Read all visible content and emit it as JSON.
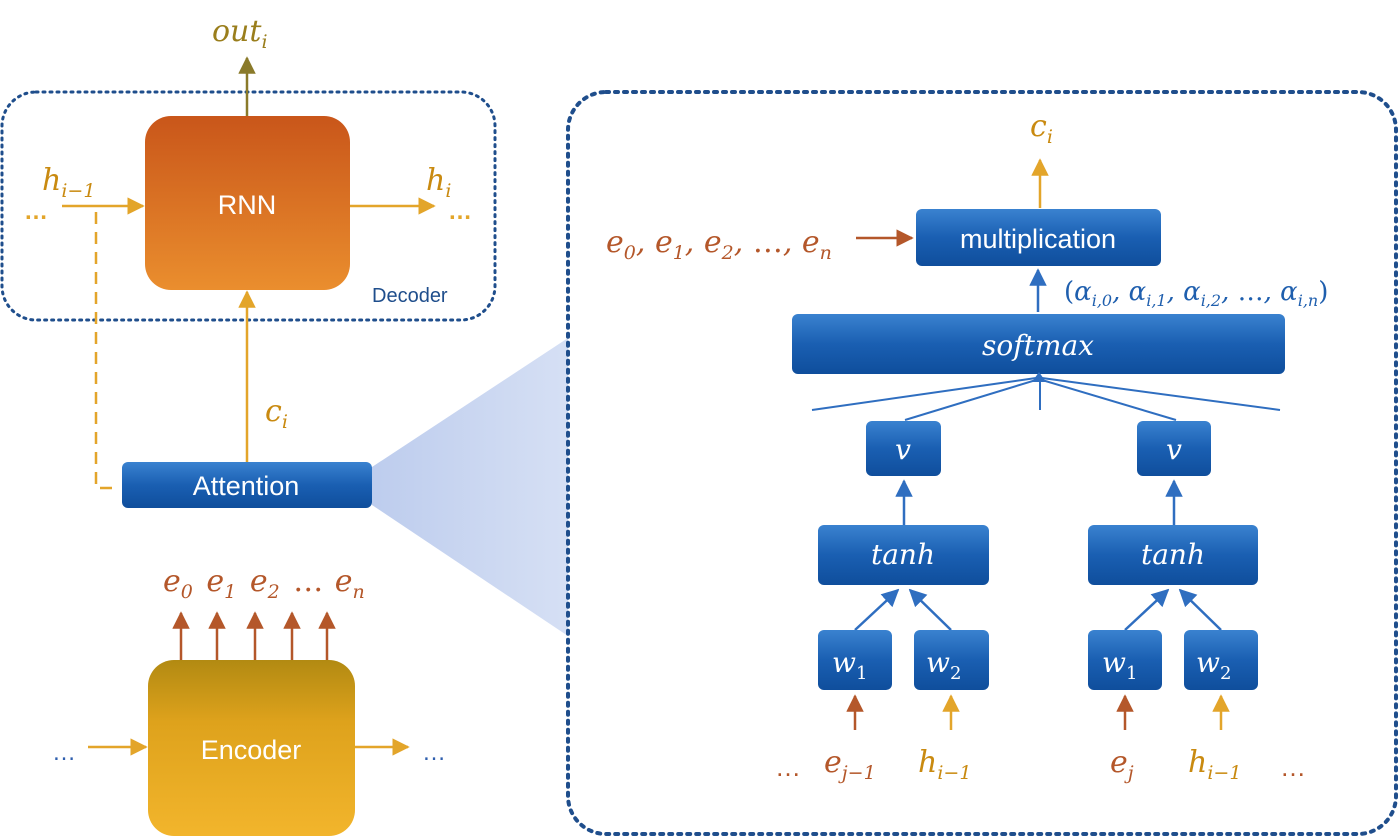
{
  "decoder": {
    "title": "Decoder",
    "rnn_label": "RNN",
    "output_label": "out",
    "output_sub": "i",
    "hidden_in_label": "h",
    "hidden_in_sub": "i−1",
    "hidden_out_label": "h",
    "hidden_out_sub": "i",
    "ellipsis_left": "…",
    "ellipsis_right": "…"
  },
  "context": {
    "label": "c",
    "sub": "i"
  },
  "attention": {
    "label": "Attention"
  },
  "encoder": {
    "label": "Encoder",
    "outputs": [
      {
        "base": "e",
        "sub": "0"
      },
      {
        "base": "e",
        "sub": "1"
      },
      {
        "base": "e",
        "sub": "2"
      },
      {
        "base": "…",
        "sub": ""
      },
      {
        "base": "e",
        "sub": "n"
      }
    ],
    "ellipsis_left": "…",
    "ellipsis_right": "…"
  },
  "detail": {
    "context_out": {
      "label": "c",
      "sub": "i"
    },
    "multiplication_label": "multiplication",
    "encoder_states": [
      {
        "base": "e",
        "sub": "0",
        "sep": ", "
      },
      {
        "base": "e",
        "sub": "1",
        "sep": ", "
      },
      {
        "base": "e",
        "sub": "2",
        "sep": ", "
      },
      {
        "base": "…",
        "sub": "",
        "sep": ", "
      },
      {
        "base": "e",
        "sub": "n",
        "sep": ""
      }
    ],
    "alphas": [
      {
        "base": "α",
        "sub": "i,0",
        "sep": ", "
      },
      {
        "base": "α",
        "sub": "i,1",
        "sep": ", "
      },
      {
        "base": "α",
        "sub": "i,2",
        "sep": ", "
      },
      {
        "base": "…",
        "sub": "",
        "sep": ", "
      },
      {
        "base": "α",
        "sub": "i,n",
        "sep": ""
      }
    ],
    "alphas_open": "(",
    "alphas_close": ")",
    "softmax_label": "softmax",
    "v_label": "v",
    "tanh_label": "tanh",
    "w1": {
      "base": "w",
      "sub": "1"
    },
    "w2": {
      "base": "w",
      "sub": "2"
    },
    "left_inputs": {
      "ellipsis": "…",
      "e": {
        "base": "e",
        "sub": "j−1"
      },
      "h": {
        "base": "h",
        "sub": "i−1"
      }
    },
    "right_inputs": {
      "e": {
        "base": "e",
        "sub": "j"
      },
      "h": {
        "base": "h",
        "sub": "i−1"
      },
      "ellipsis": "…"
    }
  },
  "colors": {
    "decoder_box_border": "#1f4e8c",
    "rnn_top": "#c9561a",
    "rnn_bottom": "#e98a2c",
    "encoder_top": "#b88b10",
    "encoder_bottom": "#f0b22a",
    "blue_box_top": "#2b73c4",
    "blue_box_bottom": "#1253a3",
    "arrow_gold": "#e3a52a",
    "arrow_rust": "#b4572a",
    "arrow_blue": "#2f6ec0",
    "text_gold": "#c98a10",
    "text_rust": "#b4572a",
    "text_blue": "#1f5fae",
    "zoom_fill": "#c5d3f0"
  }
}
